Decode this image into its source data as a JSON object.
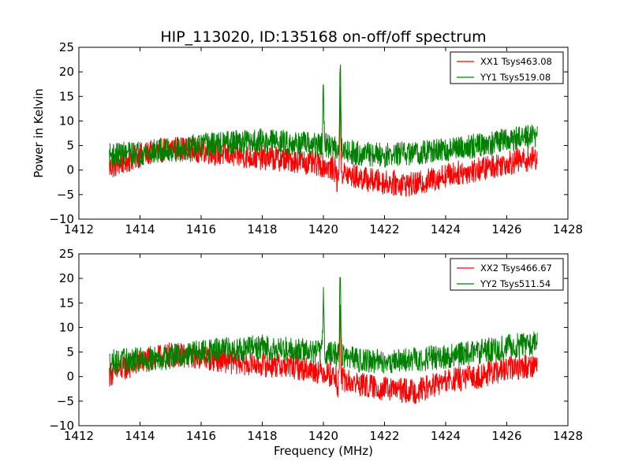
{
  "chart_data": [
    {
      "type": "line",
      "title": "HIP_113020, ID:135168 on-off/off spectrum",
      "xlabel": "",
      "ylabel": "Power in Kelvin",
      "xlim": [
        1412,
        1428
      ],
      "ylim": [
        -10,
        25
      ],
      "xticks": [
        "1412",
        "1414",
        "1416",
        "1418",
        "1420",
        "1422",
        "1424",
        "1426",
        "1428"
      ],
      "yticks": [
        "−10",
        "−5",
        "0",
        "5",
        "10",
        "15",
        "20",
        "25"
      ],
      "grid": false,
      "legend_position": "top-right",
      "noise": 3.2,
      "series": [
        {
          "name": "XX1 Tsys463.08",
          "color": "#ff0000",
          "x": [
            1413.0,
            1414.0,
            1415.0,
            1416.0,
            1417.0,
            1418.0,
            1419.0,
            1420.0,
            1420.4,
            1420.8,
            1421.5,
            1422.0,
            1423.0,
            1424.0,
            1425.0,
            1426.0,
            1427.0
          ],
          "y": [
            0.5,
            3.0,
            4.5,
            4.0,
            3.0,
            2.5,
            2.0,
            1.0,
            0.0,
            -1.0,
            -2.0,
            -2.5,
            -3.0,
            -1.0,
            0.0,
            1.5,
            2.5
          ],
          "peaks": [
            {
              "x": 1420.55,
              "y": 15.0
            },
            {
              "x": 1420.45,
              "y": -3.0
            }
          ]
        },
        {
          "name": "YY1 Tsys519.08",
          "color": "#008000",
          "x": [
            1413.0,
            1414.0,
            1415.0,
            1416.0,
            1417.0,
            1418.0,
            1419.0,
            1420.0,
            1420.5,
            1421.0,
            1422.0,
            1423.0,
            1424.0,
            1425.0,
            1426.0,
            1427.0
          ],
          "y": [
            3.0,
            3.5,
            4.0,
            5.0,
            5.5,
            6.0,
            5.5,
            5.0,
            4.5,
            3.5,
            3.0,
            3.5,
            4.0,
            5.0,
            6.0,
            7.0
          ],
          "peaks": [
            {
              "x": 1420.0,
              "y": 17.0
            },
            {
              "x": 1420.55,
              "y": 22.3
            }
          ]
        }
      ]
    },
    {
      "type": "line",
      "title": "",
      "xlabel": "Frequency (MHz)",
      "ylabel": "",
      "xlim": [
        1412,
        1428
      ],
      "ylim": [
        -10,
        25
      ],
      "xticks": [
        "1412",
        "1414",
        "1416",
        "1418",
        "1420",
        "1422",
        "1424",
        "1426",
        "1428"
      ],
      "yticks": [
        "−10",
        "−5",
        "0",
        "5",
        "10",
        "15",
        "20",
        "25"
      ],
      "grid": false,
      "legend_position": "top-right",
      "noise": 3.2,
      "series": [
        {
          "name": "XX2 Tsys466.67",
          "color": "#ff0000",
          "x": [
            1413.0,
            1414.0,
            1415.0,
            1416.0,
            1417.0,
            1418.0,
            1419.0,
            1420.0,
            1420.4,
            1420.8,
            1421.5,
            1422.0,
            1423.0,
            1424.0,
            1425.0,
            1426.0,
            1427.0
          ],
          "y": [
            0.5,
            3.0,
            4.5,
            4.0,
            3.0,
            2.5,
            2.0,
            1.0,
            0.0,
            -1.0,
            -2.0,
            -2.5,
            -3.0,
            -1.0,
            0.0,
            1.5,
            2.5
          ],
          "peaks": [
            {
              "x": 1420.55,
              "y": 13.0
            },
            {
              "x": 1420.45,
              "y": -4.0
            }
          ]
        },
        {
          "name": "YY2 Tsys511.54",
          "color": "#008000",
          "x": [
            1413.0,
            1414.0,
            1415.0,
            1416.0,
            1417.0,
            1418.0,
            1419.0,
            1420.0,
            1420.5,
            1421.0,
            1422.0,
            1423.0,
            1424.0,
            1425.0,
            1426.0,
            1427.0
          ],
          "y": [
            3.0,
            3.5,
            4.0,
            5.0,
            5.5,
            6.0,
            5.5,
            5.0,
            4.5,
            3.5,
            3.0,
            3.5,
            4.0,
            5.0,
            6.0,
            7.0
          ],
          "peaks": [
            {
              "x": 1420.0,
              "y": 17.0
            },
            {
              "x": 1420.55,
              "y": 22.0
            }
          ]
        }
      ]
    }
  ]
}
